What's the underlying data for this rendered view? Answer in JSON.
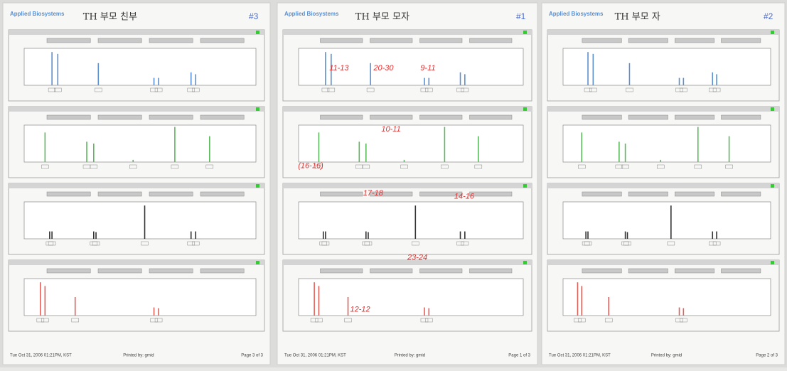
{
  "pages": [
    {
      "header": {
        "brand": "Applied Biosystems",
        "title": "TH 부모 친부",
        "tag": "#3"
      },
      "annotations": [],
      "footer": {
        "date": "Tue Oct 31, 2006 01:21PM, KST",
        "printed_by": "Printed by: gmid",
        "page": "Page 3 of 3"
      }
    },
    {
      "header": {
        "brand": "Applied Biosystems",
        "title": "TH 부모 모자",
        "tag": "#1"
      },
      "annotations": [
        "11-13",
        "20-30",
        "9-11",
        "10-11",
        "(16-16)",
        "17-18",
        "14-16",
        "23-24",
        "12-12"
      ],
      "footer": {
        "date": "Tue Oct 31, 2006 01:21PM, KST",
        "printed_by": "Printed by: gmid",
        "page": "Page 1 of 3"
      }
    },
    {
      "header": {
        "brand": "Applied Biosystems",
        "title": "TH 부모 자",
        "tag": "#2"
      },
      "annotations": [],
      "footer": {
        "date": "Tue Oct 31, 2006 01:21PM, KST",
        "printed_by": "Printed by: gmid",
        "page": "Page 2 of 3"
      }
    }
  ]
}
